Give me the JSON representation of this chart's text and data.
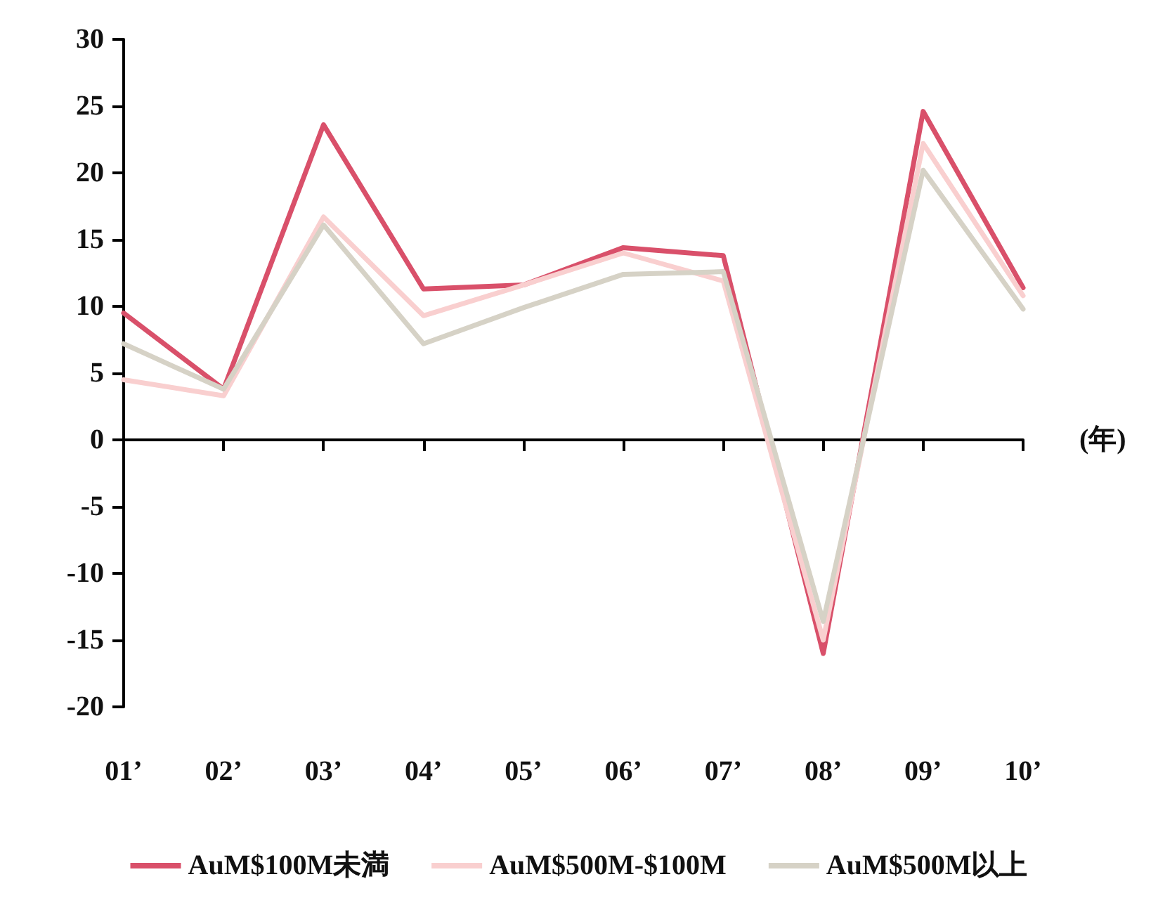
{
  "chart_data": {
    "type": "line",
    "xlabel": "(年)",
    "categories": [
      "01’",
      "02’",
      "03’",
      "04’",
      "05’",
      "06’",
      "07’",
      "08’",
      "09’",
      "10’"
    ],
    "series": [
      {
        "name": "AuM$100M未満",
        "color": "#d9506a",
        "values": [
          9.5,
          3.8,
          23.6,
          11.3,
          11.6,
          14.4,
          13.8,
          -16.0,
          24.6,
          11.4
        ]
      },
      {
        "name": "AuM$500M-$100M",
        "color": "#f9cfcf",
        "values": [
          4.5,
          3.3,
          16.7,
          9.3,
          11.6,
          14.0,
          11.9,
          -15.0,
          22.2,
          10.8
        ]
      },
      {
        "name": "AuM$500M以上",
        "color": "#d6d2c6",
        "values": [
          7.2,
          3.8,
          16.1,
          7.2,
          9.9,
          12.4,
          12.6,
          -13.6,
          20.2,
          9.8
        ]
      }
    ],
    "ylim": [
      -20,
      30
    ],
    "yticks": [
      -20,
      -15,
      -10,
      -5,
      0,
      5,
      10,
      15,
      20,
      25,
      30
    ],
    "legend": "bottom",
    "marker": "none",
    "line_style": "solid"
  }
}
